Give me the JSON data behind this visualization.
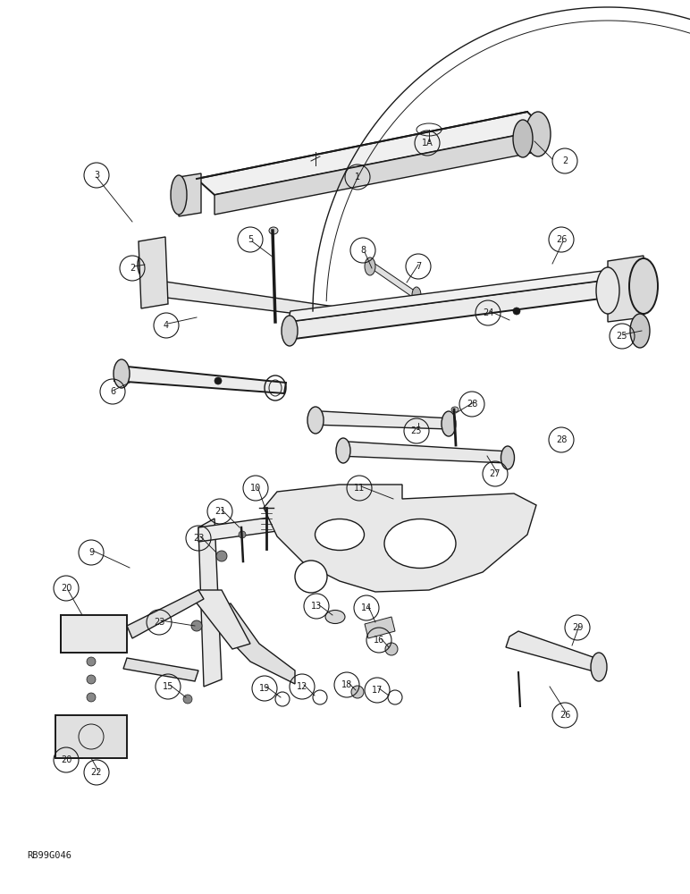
{
  "figure_id": "RB99G046",
  "bg_color": "#ffffff",
  "line_color": "#1a1a1a",
  "fig_width": 7.72,
  "fig_height": 10.0,
  "dpi": 100
}
